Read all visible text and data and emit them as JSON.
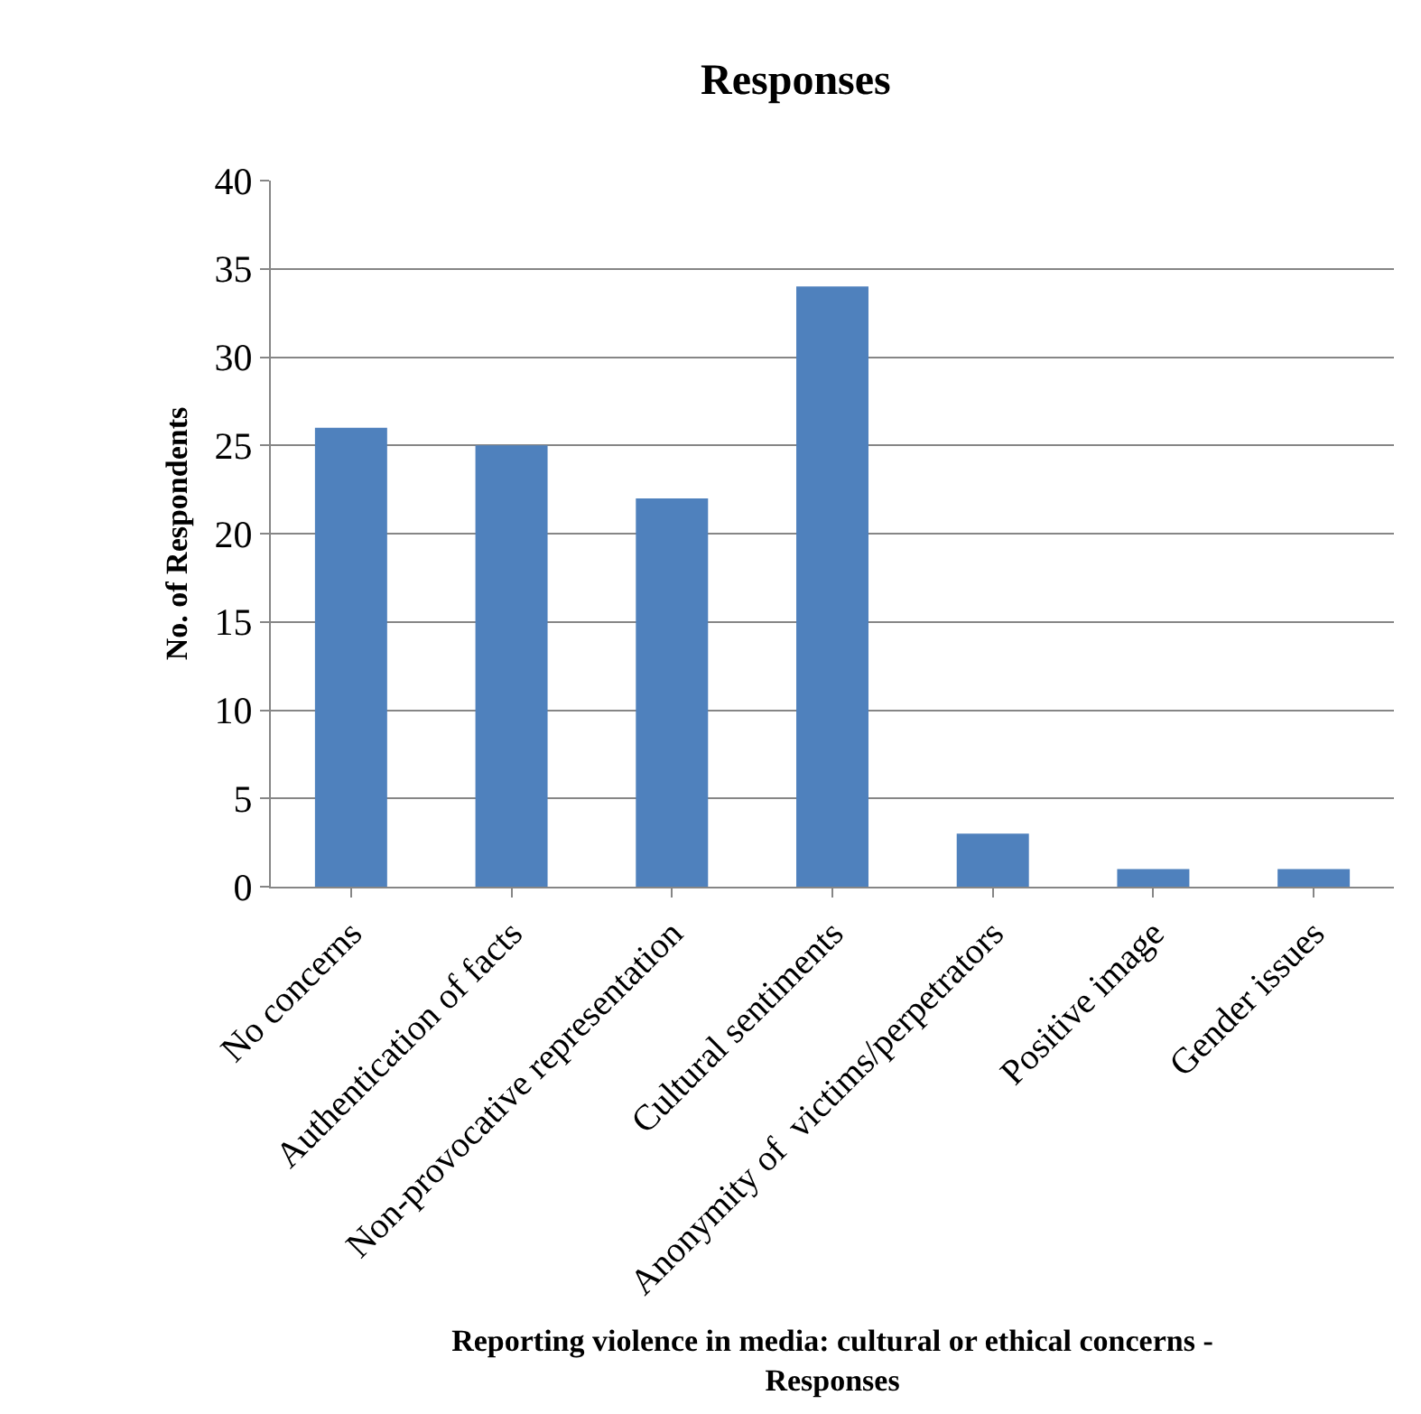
{
  "chart_data": {
    "type": "bar",
    "title": "Responses",
    "xlabel": "Reporting violence in media: cultural or ethical concerns - Responses",
    "ylabel": "No. of Respondents",
    "categories": [
      "No concerns",
      "Authentication of facts",
      "Non-provocative representation",
      "Cultural sentiments",
      "Anonymity of  victims/perpetrators",
      "Positive image",
      "Gender issues"
    ],
    "values": [
      26,
      25,
      22,
      34,
      3,
      1,
      1
    ],
    "color": "#4f81bd",
    "ylim": [
      0,
      40
    ],
    "yticks": [
      0,
      5,
      10,
      15,
      20,
      25,
      30,
      35,
      40
    ],
    "grid": "y"
  }
}
